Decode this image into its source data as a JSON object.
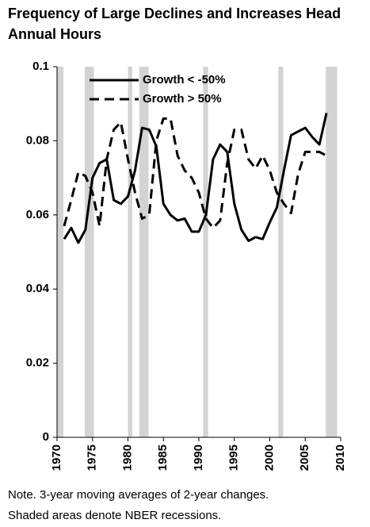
{
  "chart_data": {
    "type": "line",
    "title": "Frequency of Large Declines and Increases Head Annual Hours",
    "notes": [
      "Note. 3-year moving averages of 2-year changes.",
      "Shaded areas denote NBER recessions."
    ],
    "x": [
      1971,
      1972,
      1973,
      1974,
      1975,
      1976,
      1977,
      1978,
      1979,
      1980,
      1981,
      1982,
      1983,
      1984,
      1985,
      1986,
      1987,
      1988,
      1989,
      1990,
      1991,
      1992,
      1993,
      1994,
      1995,
      1996,
      1997,
      1998,
      1999,
      2000,
      2001,
      2002,
      2003,
      2004,
      2005,
      2006,
      2007,
      2008
    ],
    "series": [
      {
        "name": "Growth < -50%",
        "color": "#000000",
        "dash": false,
        "values": [
          0.0535,
          0.0565,
          0.0525,
          0.056,
          0.07,
          0.074,
          0.075,
          0.064,
          0.063,
          0.065,
          0.072,
          0.0835,
          0.083,
          0.0785,
          0.063,
          0.06,
          0.0585,
          0.059,
          0.0555,
          0.0555,
          0.06,
          0.075,
          0.079,
          0.077,
          0.063,
          0.056,
          0.053,
          0.054,
          0.0535,
          0.058,
          0.062,
          0.072,
          0.0815,
          0.0825,
          0.0835,
          0.081,
          0.079,
          0.0875
        ]
      },
      {
        "name": "Growth > 50%",
        "color": "#000000",
        "dash": true,
        "values": [
          0.057,
          0.064,
          0.0715,
          0.0705,
          0.066,
          0.057,
          0.075,
          0.083,
          0.085,
          0.075,
          0.066,
          0.059,
          0.06,
          0.08,
          0.086,
          0.086,
          0.076,
          0.072,
          0.07,
          0.066,
          0.059,
          0.0565,
          0.0585,
          0.074,
          0.083,
          0.083,
          0.075,
          0.0725,
          0.076,
          0.072,
          0.066,
          0.063,
          0.0605,
          0.071,
          0.077,
          0.077,
          0.077,
          0.076
        ]
      }
    ],
    "shaded_regions": [
      [
        1969.9,
        1970.9
      ],
      [
        1973.9,
        1975.2
      ],
      [
        1980,
        1980.6
      ],
      [
        1981.6,
        1982.9
      ],
      [
        1990.6,
        1991.3
      ],
      [
        2001.2,
        2001.9
      ],
      [
        2007.9,
        2009.5
      ]
    ],
    "shade_color": "#d3d3d3",
    "xlim": [
      1970,
      2010
    ],
    "xticks": [
      1970,
      1975,
      1980,
      1985,
      1990,
      1995,
      2000,
      2005,
      2010
    ],
    "ylim": [
      0,
      0.1
    ],
    "yticks": [
      0,
      0.02,
      0.04,
      0.06,
      0.08,
      0.1
    ],
    "legend": "upper left",
    "grid": false
  }
}
